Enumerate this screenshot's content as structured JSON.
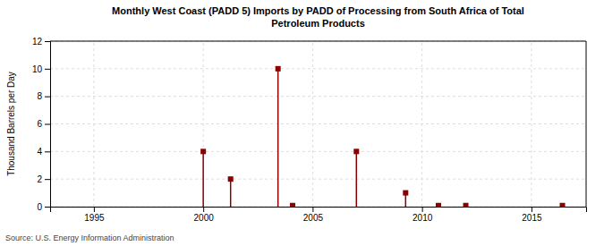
{
  "chart_data": {
    "type": "stem",
    "title": "Monthly West Coast (PADD 5) Imports by PADD of Processing from South Africa of Total\nPetroleum Products",
    "y_label": "Thousand Barrels per Day",
    "source": "Source: U.S. Energy Information Administration",
    "x": [
      2000.0,
      2001.25,
      2003.417,
      2004.083,
      2007.0,
      2009.25,
      2010.75,
      2012.0,
      2016.417
    ],
    "values": [
      4.0,
      2.0,
      10.0,
      0.08,
      4.0,
      1.0,
      0.08,
      0.08,
      0.08
    ],
    "color": "#8b0000",
    "marker": "square",
    "xlim": [
      1993.0,
      2017.5
    ],
    "ylim": [
      0,
      12
    ],
    "xticks": [
      1995,
      2000,
      2005,
      2010,
      2015
    ],
    "yticks": [
      0,
      2,
      4,
      6,
      8,
      10,
      12
    ],
    "grid": true
  }
}
